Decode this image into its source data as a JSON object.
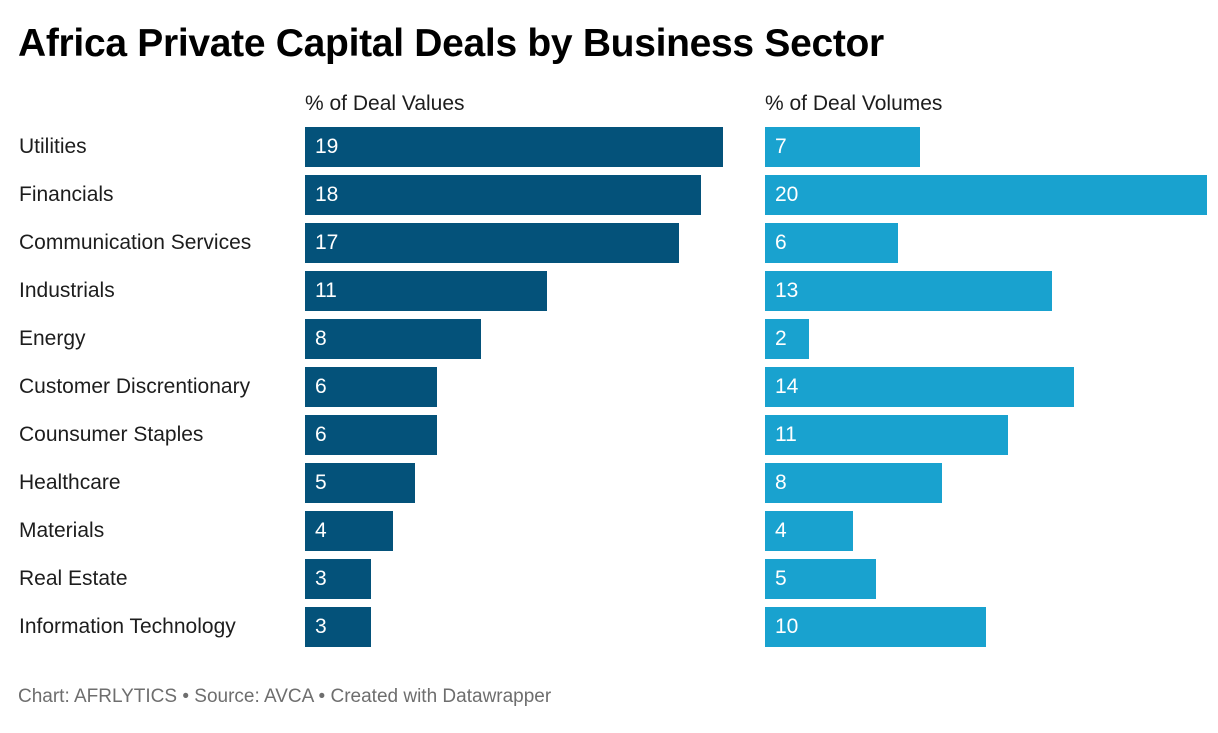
{
  "colors": {
    "values_bar": "#04527a",
    "volumes_bar": "#19a2cf"
  },
  "chart_data": {
    "type": "bar",
    "orientation": "horizontal",
    "title": "Africa Private Capital Deals by Business Sector",
    "categories": [
      "Utilities",
      "Financials",
      "Communication Services",
      "Industrials",
      "Energy",
      "Customer Discrentionary",
      "Counsumer Staples",
      "Healthcare",
      "Materials",
      "Real Estate",
      "Information Technology"
    ],
    "series": [
      {
        "name": "% of Deal Values",
        "values": [
          19,
          18,
          17,
          11,
          8,
          6,
          6,
          5,
          4,
          3,
          3
        ]
      },
      {
        "name": "% of Deal Volumes",
        "values": [
          7,
          20,
          6,
          13,
          2,
          14,
          11,
          8,
          4,
          5,
          10
        ]
      }
    ],
    "xlim": [
      0,
      20
    ],
    "grid": false,
    "legend": "none",
    "footer": "Chart: AFRLYTICS • Source: AVCA • Created with Datawrapper"
  }
}
